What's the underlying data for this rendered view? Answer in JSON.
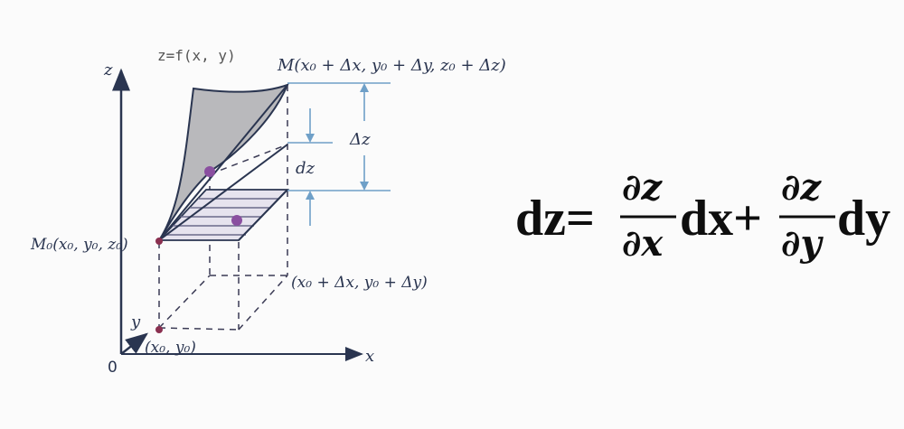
{
  "diagram": {
    "surface_label": "z=f(x, y)",
    "point_M": "M(x₀ + Δx, y₀ + Δy, z₀ + Δz)",
    "point_M0": "M₀(x₀, y₀, z₀)",
    "point_xy_delta": "(x₀ + Δx, y₀ + Δy)",
    "point_xy": "(x₀, y₀)",
    "axis_z": "z",
    "axis_x": "x",
    "axis_y": "y",
    "origin": "0",
    "delta_z": "Δz",
    "dz": "dz"
  },
  "formula": {
    "lhs": "dz=",
    "partial_z_1": "∂z",
    "partial_x": "∂x",
    "dx_plus": "dx+",
    "partial_z_2": "∂z",
    "partial_y": "∂y",
    "dy": "dy"
  },
  "colors": {
    "ink": "#2a3550",
    "surface_fill": "#b9b9bc",
    "plane_hatch": "#6a6a8a",
    "point": "#8a4fa0",
    "guide": "#6fa0c8"
  }
}
